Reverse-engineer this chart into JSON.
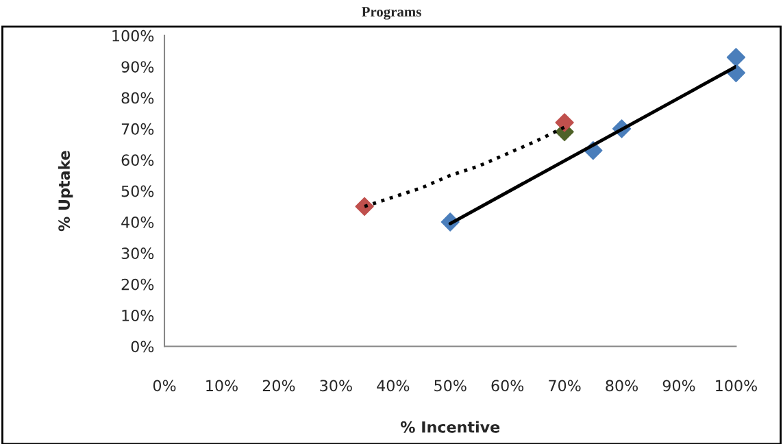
{
  "chart_data": {
    "type": "scatter",
    "title": "Programs",
    "xlabel": "% Incentive",
    "ylabel": "% Uptake",
    "xlim": [
      0,
      100
    ],
    "ylim": [
      0,
      100
    ],
    "xticks": [
      {
        "value": 0,
        "label": "0%"
      },
      {
        "value": 10,
        "label": "10%"
      },
      {
        "value": 20,
        "label": "20%"
      },
      {
        "value": 30,
        "label": "30%"
      },
      {
        "value": 40,
        "label": "40%"
      },
      {
        "value": 50,
        "label": "50%"
      },
      {
        "value": 60,
        "label": "60%"
      },
      {
        "value": 70,
        "label": "70%"
      },
      {
        "value": 80,
        "label": "80%"
      },
      {
        "value": 90,
        "label": "90%"
      },
      {
        "value": 100,
        "label": "100%"
      }
    ],
    "yticks": [
      {
        "value": 0,
        "label": "0%"
      },
      {
        "value": 10,
        "label": "10%"
      },
      {
        "value": 20,
        "label": "20%"
      },
      {
        "value": 30,
        "label": "30%"
      },
      {
        "value": 40,
        "label": "40%"
      },
      {
        "value": 50,
        "label": "50%"
      },
      {
        "value": 60,
        "label": "60%"
      },
      {
        "value": 70,
        "label": "70%"
      },
      {
        "value": 80,
        "label": "80%"
      },
      {
        "value": 90,
        "label": "90%"
      },
      {
        "value": 100,
        "label": "100%"
      }
    ],
    "grid": false,
    "legend": false,
    "marker": "diamond",
    "series": [
      {
        "color": "#4a7ebb",
        "x": [
          50,
          75,
          80,
          100,
          100
        ],
        "values": [
          40,
          63,
          70,
          93,
          88
        ]
      },
      {
        "color": "#4f6228",
        "x": [
          70
        ],
        "values": [
          69
        ]
      },
      {
        "color": "#c0504d",
        "x": [
          35,
          70
        ],
        "values": [
          45,
          72
        ]
      },
      {
        "type": "line",
        "color": "#000000",
        "marker": "none",
        "line_style": "solid",
        "x": [
          50,
          100
        ],
        "values": [
          39.5,
          90
        ]
      },
      {
        "type": "line",
        "color": "#000000",
        "marker": "none",
        "line_style": "dotted",
        "x": [
          35,
          40,
          45,
          50,
          55,
          60,
          65,
          70
        ],
        "values": [
          45,
          48,
          51,
          55,
          58,
          62,
          66,
          70.5
        ]
      }
    ]
  }
}
